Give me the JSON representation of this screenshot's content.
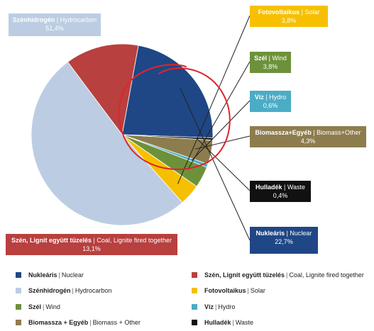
{
  "chart_data": {
    "type": "pie",
    "slices": [
      {
        "id": "nuclear",
        "hu": "Nukleáris",
        "en": "Nuclear",
        "value": 22.7,
        "label": "22,7%",
        "color": "#1f4785"
      },
      {
        "id": "coal",
        "hu": "Szén, Lignit együtt tüzelés",
        "en": "Coal, Lignite fired together",
        "value": 13.1,
        "label": "13,1%",
        "color": "#b8403f"
      },
      {
        "id": "hydrocarbon",
        "hu": "Szénhidrogén",
        "en": "Hydrocarbon",
        "value": 51.4,
        "label": "51,4%",
        "color": "#bccde3"
      },
      {
        "id": "solar",
        "hu": "Fotovoltaikus",
        "en": "Solar",
        "value": 3.8,
        "label": "3,8%",
        "color": "#f6c000"
      },
      {
        "id": "wind",
        "hu": "Szél",
        "en": "Wind",
        "value": 3.8,
        "label": "3,8%",
        "color": "#6d913a"
      },
      {
        "id": "hydro",
        "hu": "Víz",
        "en": "Hydro",
        "value": 0.6,
        "label": "0,6%",
        "color": "#4bacc6"
      },
      {
        "id": "biomass",
        "hu": "Biomassza+Egyéb",
        "en": "Biomass+Other",
        "value": 4.3,
        "label": "4,3%",
        "color": "#8d7d4e"
      },
      {
        "id": "waste",
        "hu": "Hulladék",
        "en": "Waste",
        "value": 0.4,
        "label": "0,4%",
        "color": "#111111"
      }
    ],
    "legend": [
      {
        "id": "nuclear",
        "hu": "Nukleáris",
        "en": "Nuclear",
        "color": "#1f4785"
      },
      {
        "id": "coal",
        "hu": "Szén, Lignit együtt tüzelés",
        "en": "Coal, Lignite fired together",
        "color": "#b8403f"
      },
      {
        "id": "hydrocarbon",
        "hu": "Szénhidrogén",
        "en": "Hydrocarbon",
        "color": "#bccde3"
      },
      {
        "id": "solar",
        "hu": "Fotovoltaikus",
        "en": "Solar",
        "color": "#f6c000"
      },
      {
        "id": "wind",
        "hu": "Szél",
        "en": "Wind",
        "color": "#6d913a"
      },
      {
        "id": "hydro",
        "hu": "Víz",
        "en": "Hydro",
        "color": "#4bacc6"
      },
      {
        "id": "biomass",
        "hu": "Biomassza + Egyéb",
        "en": "Biomass + Other",
        "color": "#8d7d4e"
      },
      {
        "id": "waste",
        "hu": "Hulladék",
        "en": "Waste",
        "color": "#111111"
      }
    ],
    "legend_placement": "bottom",
    "annotation_color": "#e0242b"
  }
}
